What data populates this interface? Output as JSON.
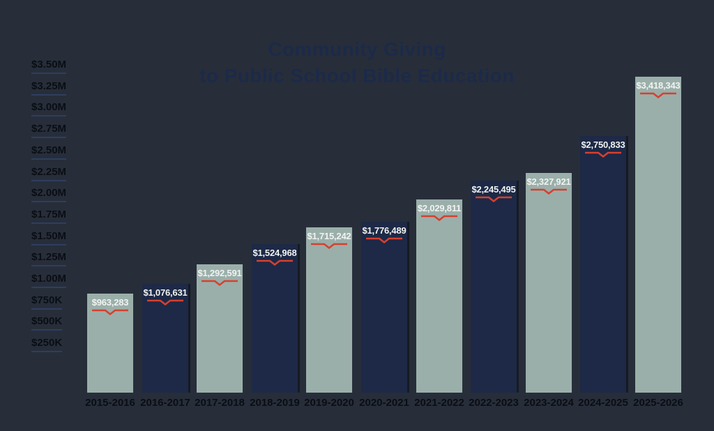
{
  "title": {
    "line1": "Community Giving",
    "line2": "to Public School Bible Education"
  },
  "chart_data": {
    "type": "bar",
    "title": "Community Giving to Public School Bible Education",
    "categories": [
      "2015-2016",
      "2016-2017",
      "2017-2018",
      "2018-2019",
      "2019-2020",
      "2020-2021",
      "2021-2022",
      "2022-2023",
      "2023-2024",
      "2024-2025",
      "2025-2026"
    ],
    "values": [
      963283,
      1076631,
      1292591,
      1524968,
      1715242,
      1776489,
      2029811,
      2245495,
      2327921,
      2750833,
      3418343
    ],
    "value_labels": [
      "$963,283",
      "$1,076,631",
      "$1,292,591",
      "$1,524,968",
      "$1,715,242",
      "$1,776,489",
      "$2,029,811",
      "$2,245,495",
      "$2,327,921",
      "$2,750,833",
      "$3,418,343"
    ],
    "y_ticks": [
      "$3.50M",
      "$3.25M",
      "$3.00M",
      "$2.75M",
      "$2.50M",
      "$2.25M",
      "$2.00M",
      "$1.75M",
      "$1.50M",
      "$1.25M",
      "$1.00M",
      "$750K",
      "$500K",
      "$250K"
    ],
    "ylim": [
      0,
      3500000
    ],
    "xlabel": "",
    "ylabel": "",
    "grid": false,
    "legend": false,
    "bar_color_alternation": "light bars on odd positions, dark bars on even positions",
    "colors": {
      "background": "#272e3a",
      "bar_light": "#9bafaa",
      "bar_dark": "#1d2946",
      "accent_red": "#d6402f",
      "title": "#1c2a49",
      "axis_text": "#0a0e14",
      "tick_underline": "#2f3e5f",
      "bar_label": "#f0f3f1"
    }
  }
}
